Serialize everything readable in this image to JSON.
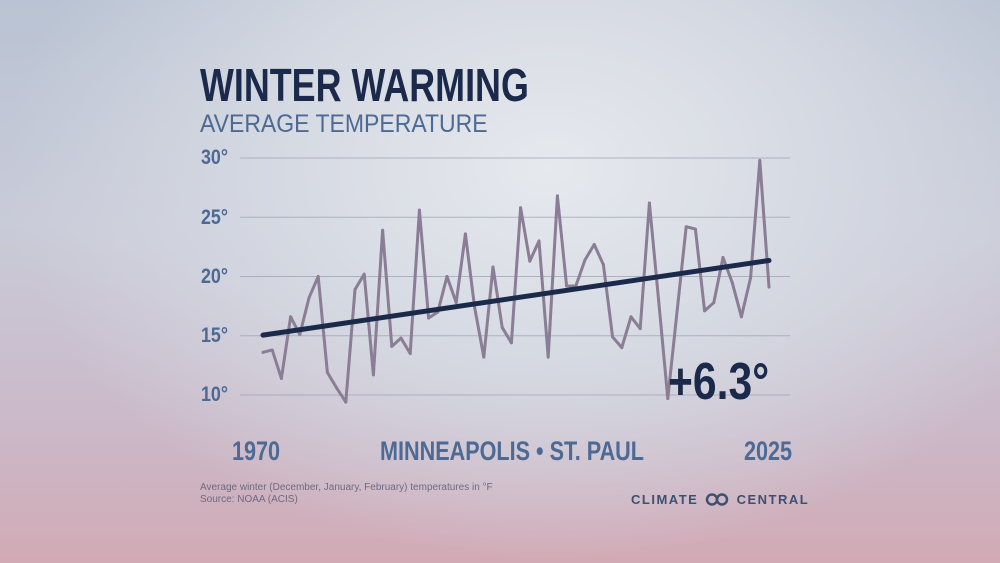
{
  "title": "WINTER WARMING",
  "subtitle": "AVERAGE TEMPERATURE",
  "location": "MINNEAPOLIS • ST. PAUL",
  "change_label": "+6.3°",
  "footnote": "Average winter (December, January, February) temperatures in °F",
  "source": "Source: NOAA (ACIS)",
  "logo": {
    "left": "CLIMATE",
    "right": "CENTRAL"
  },
  "colors": {
    "series": "#8a7d95",
    "trend": "#1b2a4a",
    "text": "#4d6a94"
  },
  "chart_data": {
    "type": "line",
    "title": "WINTER WARMING",
    "subtitle": "AVERAGE TEMPERATURE",
    "xlim": [
      1970,
      2025
    ],
    "ylim": [
      10,
      30
    ],
    "yticks": [
      30,
      25,
      20,
      15,
      10
    ],
    "ytick_labels": [
      "30°",
      "25°",
      "20°",
      "15°",
      "10°"
    ],
    "xtick_labels": [
      "1970",
      "2025"
    ],
    "grid": true,
    "x": [
      1970,
      1971,
      1972,
      1973,
      1974,
      1975,
      1976,
      1977,
      1978,
      1979,
      1980,
      1981,
      1982,
      1983,
      1984,
      1985,
      1986,
      1987,
      1988,
      1989,
      1990,
      1991,
      1992,
      1993,
      1994,
      1995,
      1996,
      1997,
      1998,
      1999,
      2000,
      2001,
      2002,
      2003,
      2004,
      2005,
      2006,
      2007,
      2008,
      2009,
      2010,
      2011,
      2012,
      2013,
      2014,
      2015,
      2016,
      2017,
      2018,
      2019,
      2020,
      2021,
      2022,
      2023,
      2024,
      2025
    ],
    "values": [
      13.6,
      13.8,
      11.4,
      16.6,
      15.1,
      18.2,
      20.0,
      11.9,
      10.6,
      9.4,
      18.9,
      20.2,
      11.7,
      23.9,
      14.1,
      14.8,
      13.5,
      25.6,
      16.5,
      17.0,
      20.0,
      17.8,
      23.6,
      17.4,
      13.2,
      20.8,
      15.7,
      14.4,
      25.8,
      21.3,
      23.0,
      13.2,
      26.8,
      19.2,
      19.2,
      21.4,
      22.7,
      21.0,
      14.9,
      14.0,
      16.6,
      15.6,
      26.2,
      18.0,
      9.7,
      17.0,
      24.2,
      24.0,
      17.1,
      17.8,
      21.6,
      19.5,
      16.6,
      19.9,
      29.8,
      19.1
    ],
    "trend": {
      "start": [
        1970,
        15.05
      ],
      "end": [
        2025,
        21.35
      ]
    },
    "annotation": "+6.3°"
  }
}
